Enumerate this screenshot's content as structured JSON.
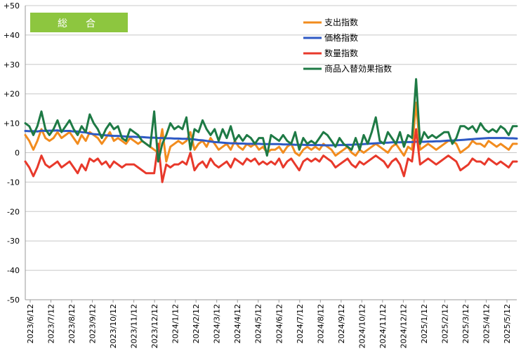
{
  "chart_data": {
    "type": "line",
    "title": "総　合",
    "colors": {
      "title_box": "#8dc63f",
      "expenditure": "#f28c1e",
      "price": "#2e59c4",
      "quantity": "#e8392b",
      "substitution": "#1e7a45",
      "grid": "#c8c8c8"
    },
    "ylim": [
      -50,
      50
    ],
    "yticks": [
      "+50",
      "+40",
      "+30",
      "+20",
      "+10",
      "0",
      "-10",
      "-20",
      "-30",
      "-40",
      "-50"
    ],
    "ytick_values": [
      50,
      40,
      30,
      20,
      10,
      0,
      -10,
      -20,
      -30,
      -40,
      -50
    ],
    "grid": true,
    "legend_position": "top-right",
    "xtick_labels": [
      "2023/6/12",
      "2023/7/12",
      "2023/8/12",
      "2023/9/12",
      "2023/10/12",
      "2023/11/12",
      "2023/12/12",
      "2024/1/12",
      "2024/2/12",
      "2024/3/12",
      "2024/4/12",
      "2024/5/12",
      "2024/6/12",
      "2024/7/12",
      "2024/8/12",
      "2024/9/12",
      "2024/10/12",
      "2024/11/12",
      "2024/12/12",
      "2025/1/12",
      "2025/2/12",
      "2025/3/12",
      "2025/4/12",
      "2025/5/12"
    ],
    "x_start": "2023/6/12",
    "x_step_days": 7,
    "series": [
      {
        "name": "支出指数",
        "color_key": "expenditure",
        "values": [
          6,
          4,
          1,
          4,
          8,
          5,
          4,
          5,
          7,
          5,
          6,
          7,
          5,
          3,
          6,
          4,
          7,
          6,
          5,
          3,
          5,
          7,
          4,
          5,
          4,
          3,
          5,
          4,
          3,
          4,
          3,
          2,
          1,
          0,
          8,
          -3,
          2,
          3,
          4,
          3,
          4,
          7,
          1,
          3,
          4,
          2,
          5,
          3,
          1,
          2,
          3,
          1,
          4,
          2,
          1,
          3,
          2,
          3,
          1,
          2,
          0,
          1,
          1,
          2,
          0,
          2,
          3,
          0,
          -1,
          1,
          2,
          1,
          2,
          1,
          3,
          2,
          1,
          -1,
          0,
          1,
          2,
          0,
          -1,
          1,
          0,
          1,
          2,
          3,
          2,
          1,
          0,
          2,
          3,
          1,
          -1,
          2,
          1,
          17,
          1,
          2,
          3,
          2,
          1,
          2,
          3,
          4,
          4,
          3,
          0,
          1,
          2,
          4,
          3,
          3,
          2,
          4,
          3,
          2,
          3,
          2,
          1,
          3,
          3
        ]
      },
      {
        "name": "価格指数",
        "color_key": "price",
        "values": [
          7.4,
          7.3,
          7.3,
          7.2,
          7.5,
          7.4,
          7.5,
          7.5,
          7.6,
          7.3,
          7.4,
          7.4,
          7.2,
          7.2,
          7.0,
          6.9,
          6.5,
          6.3,
          6.2,
          6.0,
          5.9,
          5.8,
          5.7,
          5.7,
          5.6,
          5.5,
          5.4,
          5.4,
          5.3,
          5.3,
          5.2,
          5.1,
          5.1,
          5.0,
          5.0,
          4.9,
          4.9,
          4.8,
          4.8,
          4.7,
          4.7,
          4.6,
          4.5,
          4.3,
          4.2,
          4.0,
          3.8,
          3.6,
          3.5,
          3.4,
          3.3,
          3.2,
          3.2,
          3.1,
          3.1,
          3.0,
          3.0,
          3.0,
          3.0,
          2.9,
          2.9,
          2.9,
          2.9,
          2.9,
          2.8,
          2.8,
          2.8,
          2.7,
          2.7,
          2.7,
          2.6,
          2.6,
          2.6,
          2.6,
          2.5,
          2.5,
          2.5,
          2.5,
          2.6,
          2.6,
          2.7,
          2.7,
          2.8,
          2.8,
          2.9,
          3.0,
          3.1,
          3.2,
          3.3,
          3.4,
          3.4,
          3.5,
          3.5,
          3.5,
          3.6,
          3.6,
          3.6,
          3.7,
          3.7,
          3.7,
          3.8,
          3.8,
          3.9,
          3.9,
          4.0,
          4.1,
          4.1,
          4.2,
          4.3,
          4.4,
          4.5,
          4.6,
          4.7,
          4.8,
          4.9,
          5.0,
          5.0,
          5.0,
          5.0,
          5.0,
          4.9,
          4.9,
          4.8
        ]
      },
      {
        "name": "数量指数",
        "color_key": "quantity",
        "values": [
          -3,
          -5,
          -8,
          -5,
          -1,
          -4,
          -5,
          -4,
          -3,
          -5,
          -4,
          -3,
          -5,
          -7,
          -4,
          -6,
          -2,
          -3,
          -2,
          -4,
          -3,
          -5,
          -3,
          -4,
          -5,
          -4,
          -4,
          -4,
          -5,
          -6,
          -7,
          -7,
          -7,
          3,
          -10,
          -4,
          -5,
          -4,
          -4,
          -3,
          -4,
          0,
          -6,
          -4,
          -3,
          -5,
          -2,
          -4,
          -5,
          -4,
          -3,
          -5,
          -2,
          -3,
          -4,
          -2,
          -3,
          -2,
          -4,
          -3,
          -4,
          -3,
          -4,
          -2,
          -5,
          -3,
          -2,
          -4,
          -6,
          -3,
          -2,
          -3,
          -2,
          -3,
          -1,
          -2,
          -3,
          -5,
          -4,
          -3,
          -2,
          -4,
          -5,
          -3,
          -4,
          -3,
          -2,
          -1,
          -2,
          -3,
          -5,
          -3,
          -2,
          -4,
          -8,
          -2,
          -3,
          8,
          -4,
          -3,
          -2,
          -3,
          -4,
          -3,
          -2,
          -1,
          -2,
          -3,
          -6,
          -5,
          -4,
          -2,
          -3,
          -3,
          -4,
          -2,
          -3,
          -4,
          -3,
          -4,
          -5,
          -3,
          -3
        ]
      },
      {
        "name": "商品入替効果指数",
        "color_key": "substitution",
        "values": [
          10,
          9,
          6,
          9,
          14,
          8,
          6,
          8,
          11,
          7,
          9,
          11,
          8,
          6,
          9,
          7,
          13,
          10,
          8,
          5,
          8,
          10,
          8,
          9,
          5,
          4,
          8,
          7,
          6,
          4,
          3,
          2,
          14,
          -3,
          3,
          6,
          10,
          8,
          9,
          8,
          12,
          1,
          8,
          7,
          11,
          8,
          6,
          8,
          4,
          8,
          5,
          9,
          4,
          6,
          4,
          6,
          5,
          3,
          5,
          5,
          -1,
          6,
          5,
          4,
          6,
          4,
          3,
          7,
          1,
          5,
          3,
          4,
          3,
          5,
          7,
          6,
          4,
          2,
          5,
          3,
          2,
          1,
          5,
          1,
          6,
          3,
          7,
          12,
          4,
          3,
          7,
          5,
          3,
          7,
          2,
          6,
          5,
          25,
          3,
          7,
          5,
          6,
          5,
          6,
          7,
          7,
          3,
          5,
          9,
          9,
          8,
          9,
          7,
          10,
          8,
          7,
          8,
          7,
          9,
          8,
          6,
          9,
          9
        ]
      }
    ]
  }
}
